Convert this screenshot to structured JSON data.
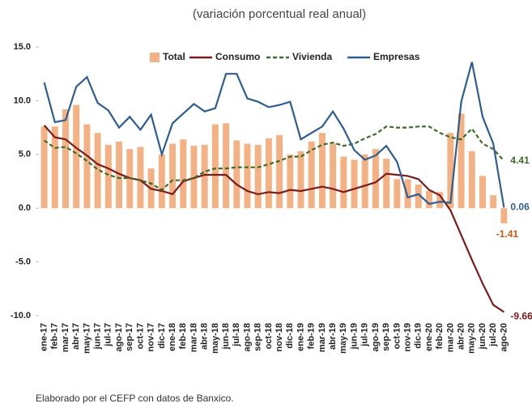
{
  "chart_data": {
    "type": "combo",
    "title": "(variación porcentual real anual)",
    "footnote": "Elaborado por el CEFP con datos de Banxico.",
    "categories": [
      "ene-17",
      "feb-17",
      "mar-17",
      "abr-17",
      "may-17",
      "jun-17",
      "jul-17",
      "ago-17",
      "sep-17",
      "oct-17",
      "nov-17",
      "dic-17",
      "ene-18",
      "feb-18",
      "mar-18",
      "abr-18",
      "may-18",
      "jun-18",
      "jul-18",
      "ago-18",
      "sep-18",
      "oct-18",
      "nov-18",
      "dic-18",
      "ene-19",
      "feb-19",
      "mar-19",
      "abr-19",
      "may-19",
      "jun-19",
      "jul-19",
      "ago-19",
      "sep-19",
      "oct-19",
      "nov-19",
      "dic-19",
      "ene-20",
      "feb-20",
      "mar-20",
      "abr-20",
      "may-20",
      "jun-20",
      "jul-20",
      "ago-20"
    ],
    "ylim": [
      -10,
      15
    ],
    "yticks": [
      {
        "value": 15,
        "label": "15.0"
      },
      {
        "value": 10,
        "label": "10.0"
      },
      {
        "value": 5,
        "label": "5.0"
      },
      {
        "value": 0,
        "label": "0.0"
      },
      {
        "value": -5,
        "label": "-5.0"
      },
      {
        "value": -10,
        "label": "-10.0"
      }
    ],
    "grid": false,
    "legend": "top",
    "series": [
      {
        "name": "Total",
        "type": "bar",
        "color": "#f4b183",
        "label_color": "#c55a11",
        "values": [
          7.6,
          7.6,
          9.2,
          9.6,
          7.8,
          7.0,
          5.9,
          6.2,
          5.5,
          5.7,
          3.7,
          5.0,
          6.0,
          6.4,
          5.8,
          5.9,
          7.8,
          7.9,
          6.3,
          6.0,
          5.9,
          6.5,
          6.8,
          5.0,
          5.3,
          6.2,
          7.0,
          6.0,
          4.8,
          4.5,
          5.0,
          5.5,
          4.6,
          2.7,
          2.7,
          2.2,
          1.6,
          1.5,
          7.0,
          8.8,
          5.3,
          3.0,
          1.2,
          -1.41
        ]
      },
      {
        "name": "Consumo",
        "type": "line",
        "color": "#7b1c1c",
        "dashed": false,
        "values": [
          7.7,
          6.6,
          6.4,
          5.6,
          4.9,
          4.1,
          3.7,
          3.2,
          2.8,
          2.6,
          1.8,
          1.6,
          1.3,
          2.5,
          2.8,
          3.1,
          3.1,
          3.1,
          2.2,
          1.6,
          1.3,
          1.5,
          1.4,
          1.7,
          1.6,
          1.8,
          2.0,
          1.8,
          1.5,
          1.8,
          2.1,
          2.4,
          3.2,
          3.1,
          3.0,
          2.7,
          1.7,
          1.2,
          -0.2,
          -2.5,
          -4.8,
          -7.0,
          -9.0,
          -9.66
        ]
      },
      {
        "name": "Vivienda",
        "type": "line",
        "color": "#3d6b2a",
        "dashed": true,
        "values": [
          6.3,
          5.6,
          5.7,
          5.1,
          4.4,
          3.6,
          3.1,
          2.8,
          2.8,
          2.6,
          2.3,
          1.7,
          2.6,
          2.6,
          2.8,
          3.4,
          3.7,
          3.7,
          3.8,
          3.8,
          3.8,
          4.1,
          4.4,
          4.8,
          4.8,
          5.4,
          5.9,
          6.1,
          5.8,
          6.0,
          6.5,
          6.9,
          7.6,
          7.5,
          7.5,
          7.6,
          7.6,
          7.0,
          6.6,
          6.4,
          7.4,
          6.0,
          5.5,
          4.41
        ]
      },
      {
        "name": "Empresas",
        "type": "line",
        "color": "#2e5d8f",
        "dashed": false,
        "values": [
          11.7,
          8.0,
          8.2,
          11.3,
          12.2,
          9.8,
          9.1,
          7.5,
          8.5,
          7.3,
          8.7,
          5.0,
          7.9,
          8.8,
          9.7,
          9.0,
          9.3,
          12.5,
          12.5,
          10.2,
          9.9,
          9.4,
          9.6,
          9.9,
          6.4,
          7.0,
          7.6,
          9.0,
          7.4,
          5.4,
          4.5,
          4.9,
          5.8,
          4.3,
          1.0,
          1.3,
          0.4,
          0.6,
          0.5,
          9.9,
          13.6,
          8.5,
          6.0,
          0.06
        ]
      }
    ]
  }
}
